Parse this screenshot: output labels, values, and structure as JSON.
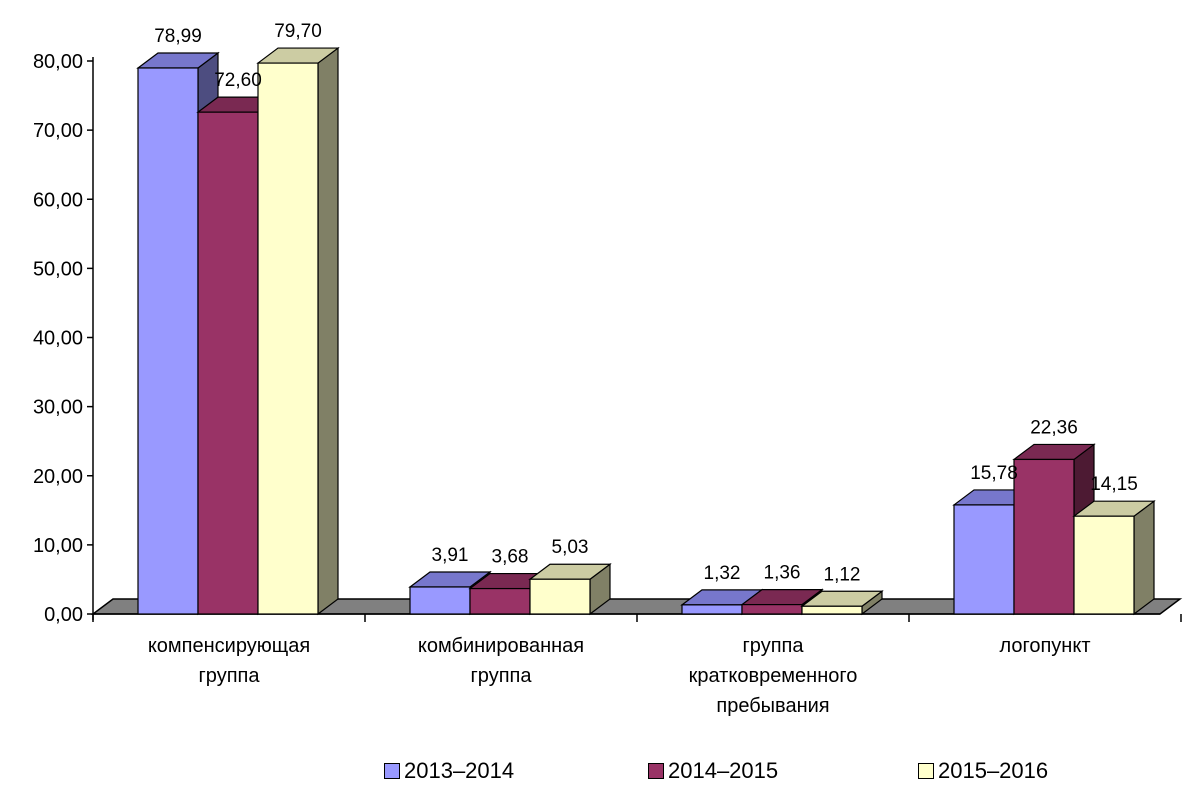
{
  "chart_data": {
    "type": "bar",
    "title": "",
    "xlabel": "",
    "ylabel": "",
    "ylim": [
      0,
      80
    ],
    "yticks": [
      "0,00",
      "10,00",
      "20,00",
      "30,00",
      "40,00",
      "50,00",
      "60,00",
      "70,00",
      "80,00"
    ],
    "grid": false,
    "three_d": true,
    "legend_position": "bottom",
    "categories": [
      [
        "компенсирующая",
        "группа"
      ],
      [
        "комбинированная",
        "группа"
      ],
      [
        "группа",
        "кратковременного",
        "пребывания"
      ],
      [
        "логопункт"
      ]
    ],
    "series": [
      {
        "name": "2013–2014",
        "values": [
          78.99,
          3.91,
          1.32,
          15.78
        ],
        "labels": [
          "78,99",
          "3,91",
          "1,32",
          "15,78"
        ],
        "color": "#9999FF",
        "top_color": "#7777CC",
        "side_color": "#4D4D80"
      },
      {
        "name": "2014–2015",
        "values": [
          72.6,
          3.68,
          1.36,
          22.36
        ],
        "labels": [
          "72,60",
          "3,68",
          "1,36",
          "22,36"
        ],
        "color": "#993366",
        "top_color": "#7A2952",
        "side_color": "#4D1A33"
      },
      {
        "name": "2015–2016",
        "values": [
          79.7,
          5.03,
          1.12,
          14.15
        ],
        "labels": [
          "79,70",
          "5,03",
          "1,12",
          "14,15"
        ],
        "color": "#FFFFCC",
        "top_color": "#CCCCA3",
        "side_color": "#808066"
      }
    ],
    "floor_color": "#808080"
  }
}
